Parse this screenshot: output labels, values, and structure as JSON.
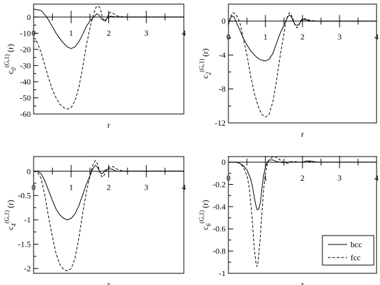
{
  "legend": {
    "entries": [
      {
        "label": "bcc",
        "style": "solid"
      },
      {
        "label": "fcc",
        "style": "dashed"
      }
    ]
  },
  "chart_data": [
    {
      "type": "line",
      "xlabel": "r",
      "ylabel": {
        "main": "c",
        "sub": "0",
        "sup": "(G,1)",
        "arg": "(r)"
      },
      "xlim": [
        0,
        4
      ],
      "ylim": [
        -60,
        8
      ],
      "xticks": [
        0,
        1,
        2,
        3,
        4
      ],
      "yticks": [
        0,
        -10,
        -20,
        -30,
        -40,
        -50,
        -60
      ],
      "series": [
        {
          "name": "bcc",
          "style": "solid",
          "points": [
            [
              0,
              5
            ],
            [
              0.2,
              4
            ],
            [
              0.35,
              0
            ],
            [
              0.5,
              -6
            ],
            [
              0.6,
              -10
            ],
            [
              0.75,
              -15
            ],
            [
              0.9,
              -18.5
            ],
            [
              1.0,
              -19.5
            ],
            [
              1.1,
              -18.5
            ],
            [
              1.2,
              -15.5
            ],
            [
              1.3,
              -11
            ],
            [
              1.4,
              -6
            ],
            [
              1.5,
              -2.5
            ],
            [
              1.6,
              0
            ],
            [
              1.68,
              2
            ],
            [
              1.75,
              1
            ],
            [
              1.82,
              -1.5
            ],
            [
              1.9,
              -2
            ],
            [
              1.97,
              -0.5
            ],
            [
              2.05,
              0.5
            ],
            [
              2.15,
              0.2
            ],
            [
              2.3,
              0
            ],
            [
              4,
              0
            ]
          ]
        },
        {
          "name": "fcc",
          "style": "dashed",
          "points": [
            [
              0,
              -13
            ],
            [
              0.05,
              -13.5
            ],
            [
              0.1,
              -16
            ],
            [
              0.2,
              -22
            ],
            [
              0.3,
              -30
            ],
            [
              0.4,
              -38
            ],
            [
              0.5,
              -45
            ],
            [
              0.6,
              -50
            ],
            [
              0.7,
              -54
            ],
            [
              0.8,
              -56
            ],
            [
              0.9,
              -57
            ],
            [
              1.0,
              -56
            ],
            [
              1.1,
              -52
            ],
            [
              1.2,
              -44
            ],
            [
              1.3,
              -32
            ],
            [
              1.4,
              -18
            ],
            [
              1.5,
              -7
            ],
            [
              1.55,
              -2
            ],
            [
              1.6,
              2
            ],
            [
              1.66,
              6
            ],
            [
              1.72,
              7
            ],
            [
              1.78,
              5
            ],
            [
              1.82,
              1
            ],
            [
              1.86,
              -2
            ],
            [
              1.9,
              -3
            ],
            [
              1.95,
              -1
            ],
            [
              2.0,
              2
            ],
            [
              2.05,
              3
            ],
            [
              2.1,
              2.5
            ],
            [
              2.2,
              1
            ],
            [
              2.3,
              0.3
            ],
            [
              2.5,
              0
            ],
            [
              4,
              0
            ]
          ]
        }
      ]
    },
    {
      "type": "line",
      "xlabel": "r",
      "ylabel": {
        "main": "c",
        "sub": "2",
        "sup": "(G,1)",
        "arg": "(r)"
      },
      "xlim": [
        0,
        4
      ],
      "ylim": [
        -12,
        2
      ],
      "xticks": [
        0,
        1,
        2,
        3,
        4
      ],
      "yticks": [
        0,
        -4,
        -8,
        -12
      ],
      "series": [
        {
          "name": "bcc",
          "style": "solid",
          "points": [
            [
              0,
              -0.3
            ],
            [
              0.05,
              0.3
            ],
            [
              0.1,
              0.6
            ],
            [
              0.15,
              0.5
            ],
            [
              0.2,
              0
            ],
            [
              0.3,
              -1
            ],
            [
              0.4,
              -2
            ],
            [
              0.5,
              -2.8
            ],
            [
              0.6,
              -3.5
            ],
            [
              0.7,
              -4
            ],
            [
              0.8,
              -4.4
            ],
            [
              0.9,
              -4.6
            ],
            [
              1.0,
              -4.7
            ],
            [
              1.1,
              -4.5
            ],
            [
              1.2,
              -3.8
            ],
            [
              1.3,
              -2.6
            ],
            [
              1.4,
              -1.4
            ],
            [
              1.5,
              -0.5
            ],
            [
              1.55,
              0
            ],
            [
              1.6,
              0.5
            ],
            [
              1.65,
              0.7
            ],
            [
              1.7,
              0.5
            ],
            [
              1.75,
              0
            ],
            [
              1.8,
              -0.4
            ],
            [
              1.85,
              -0.5
            ],
            [
              1.9,
              -0.4
            ],
            [
              1.95,
              -0.1
            ],
            [
              2.0,
              0.2
            ],
            [
              2.1,
              0.15
            ],
            [
              2.2,
              0
            ],
            [
              4,
              0
            ]
          ]
        },
        {
          "name": "fcc",
          "style": "dashed",
          "points": [
            [
              0,
              -0.5
            ],
            [
              0.05,
              0.5
            ],
            [
              0.12,
              1
            ],
            [
              0.2,
              0.8
            ],
            [
              0.3,
              0
            ],
            [
              0.4,
              -2
            ],
            [
              0.5,
              -4
            ],
            [
              0.6,
              -6.5
            ],
            [
              0.7,
              -8.5
            ],
            [
              0.8,
              -10
            ],
            [
              0.9,
              -11
            ],
            [
              1.0,
              -11.3
            ],
            [
              1.1,
              -11
            ],
            [
              1.2,
              -9.5
            ],
            [
              1.3,
              -7
            ],
            [
              1.4,
              -4
            ],
            [
              1.5,
              -1.5
            ],
            [
              1.55,
              0
            ],
            [
              1.6,
              0.6
            ],
            [
              1.65,
              1
            ],
            [
              1.7,
              0.7
            ],
            [
              1.75,
              0.2
            ],
            [
              1.8,
              -0.5
            ],
            [
              1.85,
              -0.8
            ],
            [
              1.9,
              -0.5
            ],
            [
              1.95,
              0
            ],
            [
              2.0,
              0.3
            ],
            [
              2.1,
              0.25
            ],
            [
              2.2,
              0.1
            ],
            [
              2.4,
              0
            ],
            [
              4,
              0
            ]
          ]
        }
      ]
    },
    {
      "type": "line",
      "xlabel": "r",
      "ylabel": {
        "main": "c",
        "sub": "4",
        "sup": "(G,1)",
        "arg": "(r)"
      },
      "xlim": [
        0,
        4
      ],
      "ylim": [
        -2.1,
        0.3
      ],
      "xticks": [
        0,
        1,
        2,
        3,
        4
      ],
      "yticks": [
        0,
        -0.5,
        -1,
        -1.5,
        -2
      ],
      "series": [
        {
          "name": "bcc",
          "style": "solid",
          "points": [
            [
              0,
              0
            ],
            [
              0.1,
              0
            ],
            [
              0.2,
              -0.05
            ],
            [
              0.3,
              -0.2
            ],
            [
              0.4,
              -0.4
            ],
            [
              0.5,
              -0.6
            ],
            [
              0.6,
              -0.78
            ],
            [
              0.7,
              -0.9
            ],
            [
              0.8,
              -0.97
            ],
            [
              0.9,
              -1.0
            ],
            [
              1.0,
              -0.97
            ],
            [
              1.1,
              -0.88
            ],
            [
              1.2,
              -0.72
            ],
            [
              1.3,
              -0.5
            ],
            [
              1.4,
              -0.28
            ],
            [
              1.5,
              -0.1
            ],
            [
              1.55,
              0
            ],
            [
              1.6,
              0.08
            ],
            [
              1.65,
              0.12
            ],
            [
              1.7,
              0.08
            ],
            [
              1.75,
              0
            ],
            [
              1.8,
              -0.05
            ],
            [
              1.85,
              -0.04
            ],
            [
              1.9,
              0.02
            ],
            [
              2.0,
              0.05
            ],
            [
              2.1,
              0.04
            ],
            [
              2.2,
              0
            ],
            [
              4,
              0
            ]
          ]
        },
        {
          "name": "fcc",
          "style": "dashed",
          "points": [
            [
              0,
              0
            ],
            [
              0.1,
              -0.02
            ],
            [
              0.2,
              -0.15
            ],
            [
              0.3,
              -0.5
            ],
            [
              0.4,
              -0.95
            ],
            [
              0.5,
              -1.35
            ],
            [
              0.6,
              -1.7
            ],
            [
              0.7,
              -1.92
            ],
            [
              0.8,
              -2.02
            ],
            [
              0.9,
              -2.05
            ],
            [
              1.0,
              -2.0
            ],
            [
              1.1,
              -1.8
            ],
            [
              1.2,
              -1.4
            ],
            [
              1.3,
              -0.9
            ],
            [
              1.4,
              -0.45
            ],
            [
              1.5,
              -0.1
            ],
            [
              1.55,
              0.05
            ],
            [
              1.6,
              0.18
            ],
            [
              1.65,
              0.22
            ],
            [
              1.7,
              0.15
            ],
            [
              1.75,
              0.02
            ],
            [
              1.8,
              -0.1
            ],
            [
              1.85,
              -0.12
            ],
            [
              1.9,
              -0.05
            ],
            [
              1.95,
              0.03
            ],
            [
              2.0,
              0.08
            ],
            [
              2.1,
              0.1
            ],
            [
              2.2,
              0.05
            ],
            [
              2.3,
              0.02
            ],
            [
              2.4,
              0
            ],
            [
              4,
              0
            ]
          ]
        }
      ]
    },
    {
      "type": "line",
      "xlabel": "r",
      "ylabel": {
        "main": "c",
        "sub": "6",
        "sup": "(G,1)",
        "arg": "(r)"
      },
      "xlim": [
        0,
        4
      ],
      "ylim": [
        -1,
        0.05
      ],
      "xticks": [
        0,
        1,
        2,
        3,
        4
      ],
      "yticks": [
        0,
        -0.2,
        -0.4,
        -0.6,
        -0.8,
        -1
      ],
      "series": [
        {
          "name": "bcc",
          "style": "solid",
          "points": [
            [
              0,
              0
            ],
            [
              0.2,
              0
            ],
            [
              0.3,
              -0.01
            ],
            [
              0.4,
              -0.03
            ],
            [
              0.5,
              -0.07
            ],
            [
              0.6,
              -0.15
            ],
            [
              0.65,
              -0.22
            ],
            [
              0.7,
              -0.32
            ],
            [
              0.75,
              -0.4
            ],
            [
              0.78,
              -0.43
            ],
            [
              0.82,
              -0.42
            ],
            [
              0.87,
              -0.35
            ],
            [
              0.9,
              -0.25
            ],
            [
              0.95,
              -0.12
            ],
            [
              1.0,
              -0.04
            ],
            [
              1.05,
              0
            ],
            [
              1.1,
              0.02
            ],
            [
              1.2,
              0.02
            ],
            [
              1.3,
              0.005
            ],
            [
              1.4,
              0
            ],
            [
              1.5,
              -0.005
            ],
            [
              1.6,
              0
            ],
            [
              1.7,
              0.004
            ],
            [
              1.8,
              0
            ],
            [
              2.0,
              0
            ],
            [
              2.1,
              0.01
            ],
            [
              2.2,
              0.01
            ],
            [
              2.3,
              0.005
            ],
            [
              2.4,
              0
            ],
            [
              4,
              0
            ]
          ]
        },
        {
          "name": "fcc",
          "style": "dashed",
          "points": [
            [
              0,
              0
            ],
            [
              0.2,
              0
            ],
            [
              0.3,
              -0.01
            ],
            [
              0.4,
              -0.04
            ],
            [
              0.5,
              -0.12
            ],
            [
              0.55,
              -0.2
            ],
            [
              0.6,
              -0.35
            ],
            [
              0.65,
              -0.55
            ],
            [
              0.7,
              -0.78
            ],
            [
              0.74,
              -0.9
            ],
            [
              0.77,
              -0.94
            ],
            [
              0.8,
              -0.9
            ],
            [
              0.85,
              -0.72
            ],
            [
              0.9,
              -0.48
            ],
            [
              0.95,
              -0.25
            ],
            [
              1.0,
              -0.1
            ],
            [
              1.05,
              -0.02
            ],
            [
              1.1,
              0.02
            ],
            [
              1.2,
              0.05
            ],
            [
              1.25,
              0.05
            ],
            [
              1.3,
              0.04
            ],
            [
              1.4,
              0.02
            ],
            [
              1.5,
              -0.005
            ],
            [
              1.6,
              -0.01
            ],
            [
              1.7,
              0
            ],
            [
              1.8,
              0.005
            ],
            [
              1.9,
              0
            ],
            [
              2.0,
              0
            ],
            [
              2.2,
              0.005
            ],
            [
              2.3,
              0
            ],
            [
              4,
              0
            ]
          ]
        }
      ]
    }
  ]
}
